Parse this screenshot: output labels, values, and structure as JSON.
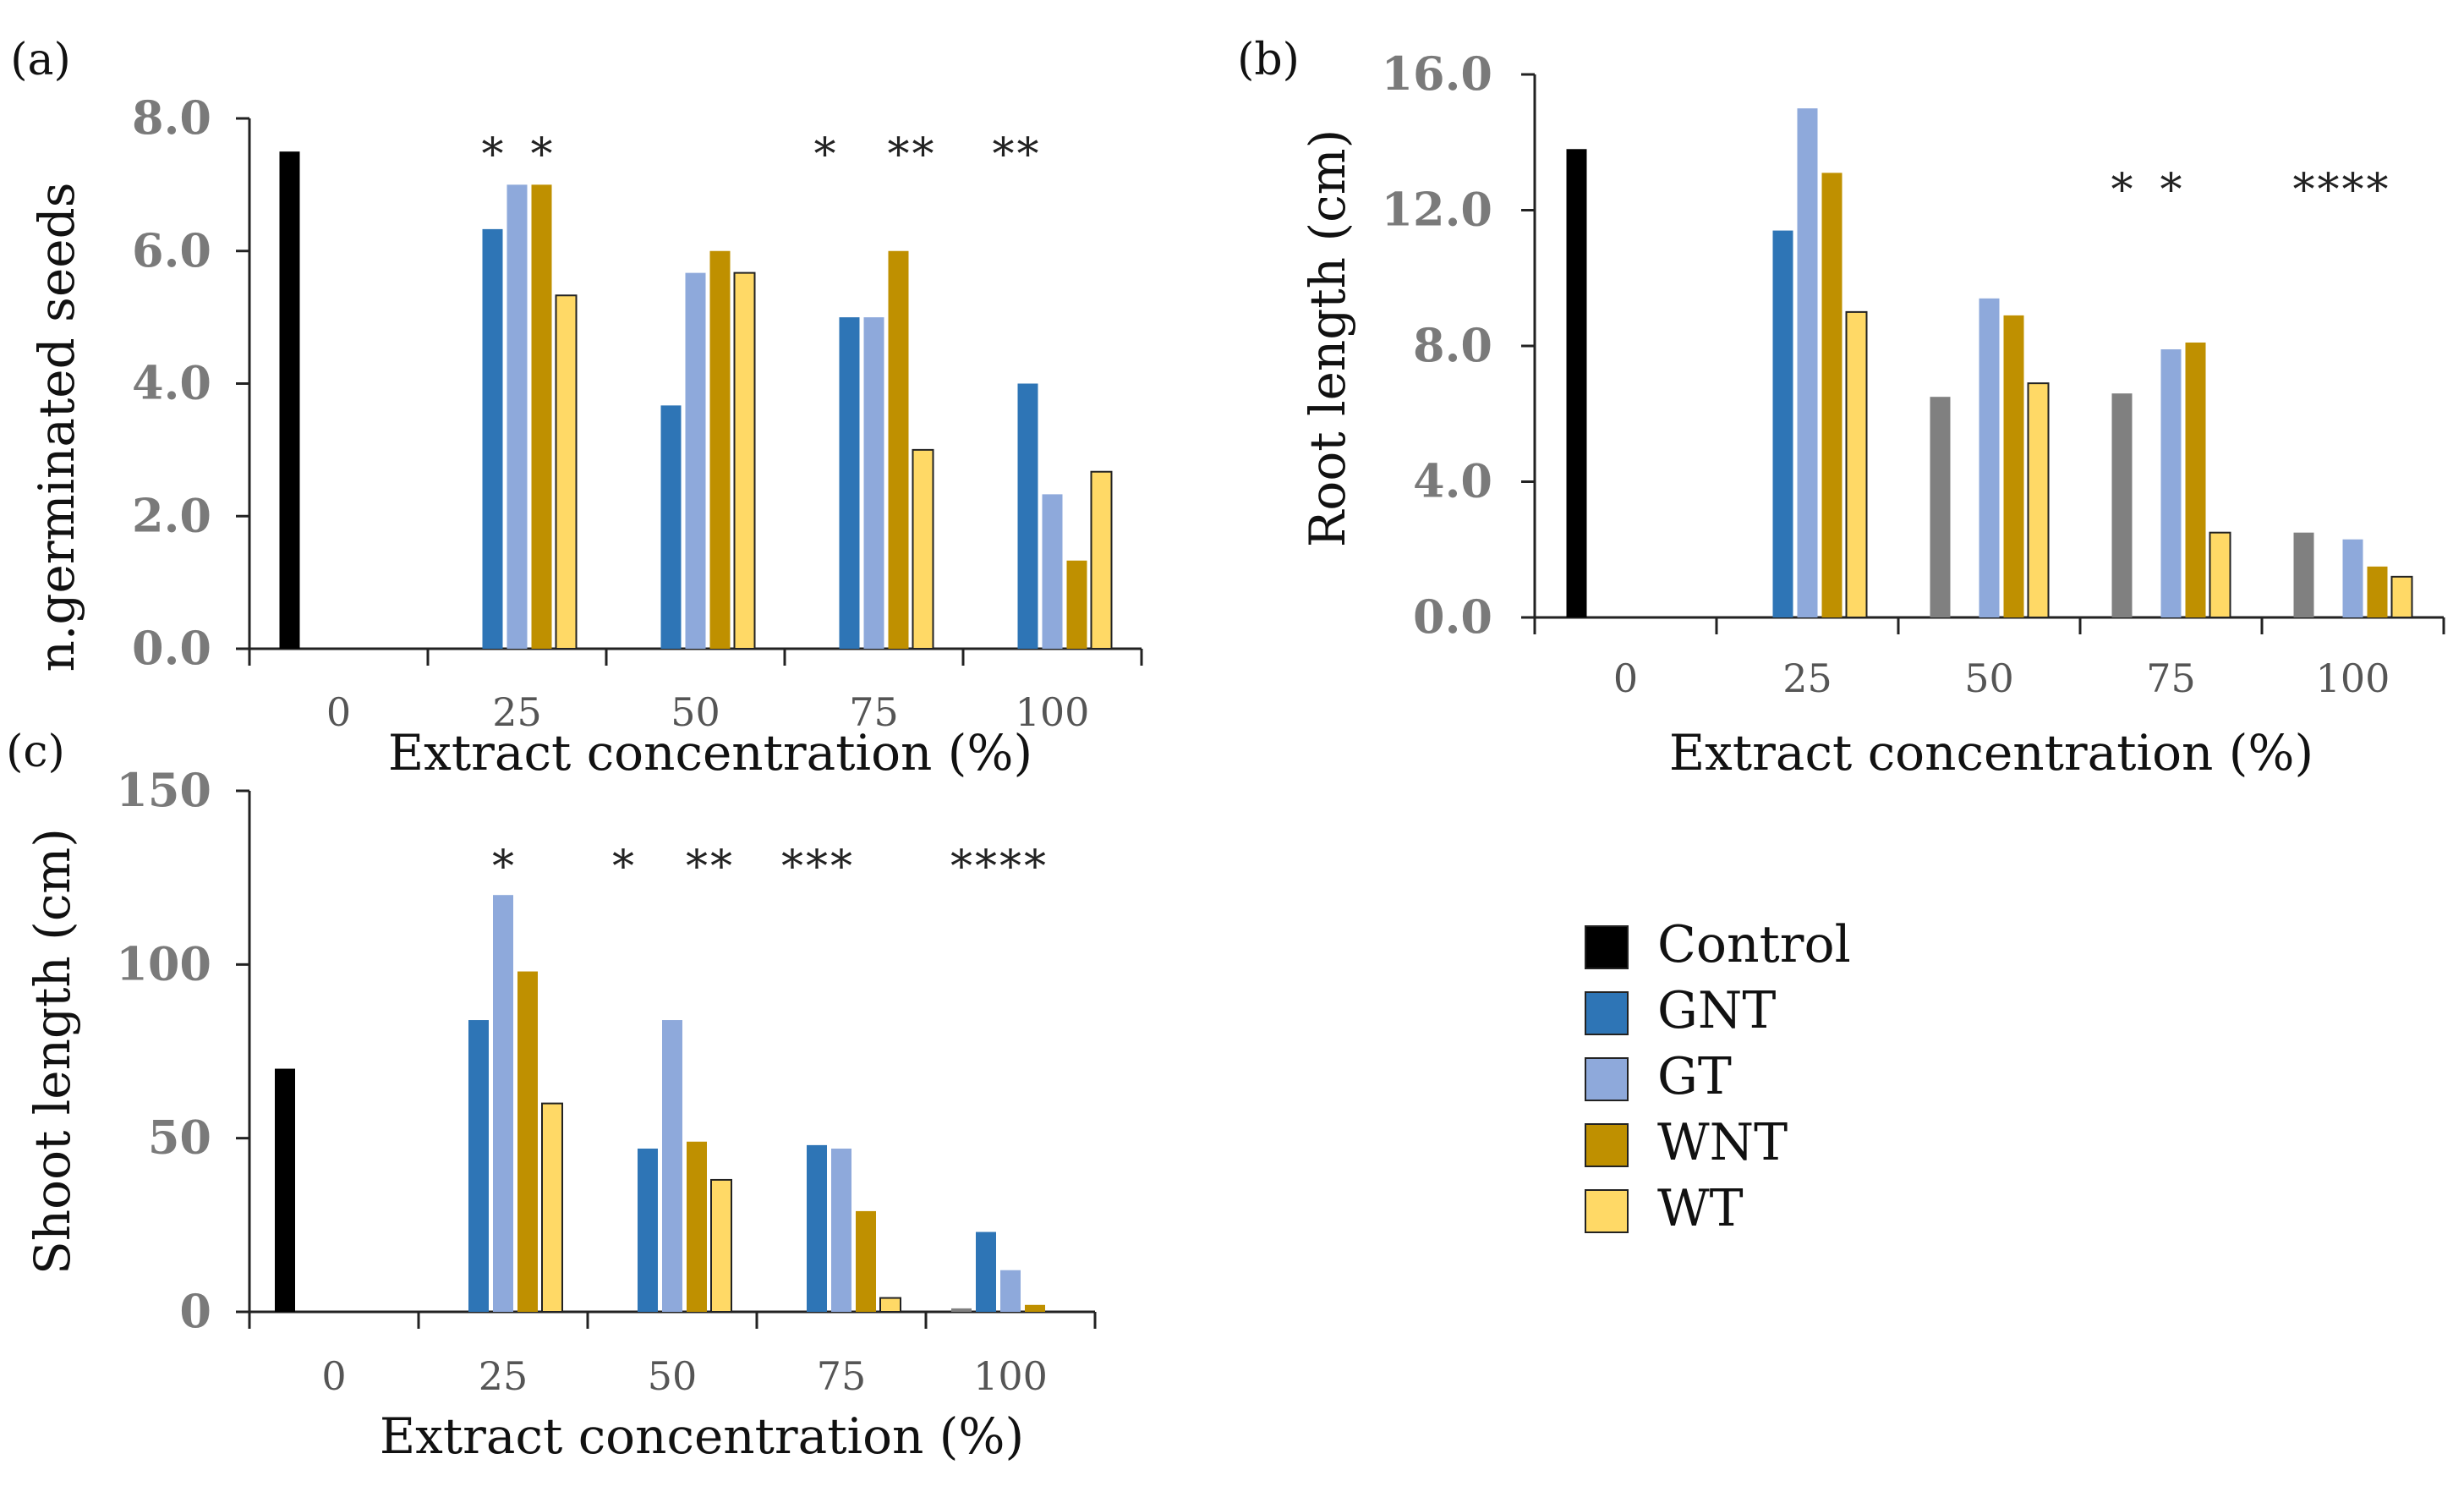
{
  "chart_data": [
    {
      "panel": "(a)",
      "type": "bar",
      "categories": [
        "0",
        "25",
        "50",
        "75",
        "100"
      ],
      "series": [
        {
          "name": "Control",
          "values": [
            7.5,
            null,
            null,
            null,
            null
          ]
        },
        {
          "name": "GNT",
          "values": [
            null,
            6.33,
            3.67,
            5.0,
            4.0
          ]
        },
        {
          "name": "GT",
          "values": [
            null,
            7.0,
            5.67,
            5.0,
            2.33
          ]
        },
        {
          "name": "WNT",
          "values": [
            null,
            7.0,
            6.0,
            6.0,
            1.33
          ]
        },
        {
          "name": "WT",
          "values": [
            null,
            5.33,
            5.67,
            3.0,
            2.67
          ]
        }
      ],
      "ylim": [
        0,
        8
      ],
      "yticks": [
        "0.0",
        "2.0",
        "4.0",
        "6.0",
        "8.0"
      ],
      "xlabel": "Extract concentration (%)",
      "ylabel": "n.germinated seeds",
      "significance": [
        {
          "category": "25",
          "series": "GNT",
          "label": "*"
        },
        {
          "category": "25",
          "series": "WNT",
          "label": "*"
        },
        {
          "category": "75",
          "series": "Control",
          "label": "*"
        },
        {
          "category": "75",
          "series": "WNT",
          "label": "*"
        },
        {
          "category": "75",
          "series": "WT",
          "label": "*"
        },
        {
          "category": "100",
          "series": "Control",
          "label": "*"
        },
        {
          "category": "100",
          "series": "GNT",
          "label": "*"
        }
      ]
    },
    {
      "panel": "(b)",
      "type": "bar",
      "categories": [
        "0",
        "25",
        "50",
        "75",
        "100"
      ],
      "series": [
        {
          "name": "Control",
          "values": [
            13.8,
            null,
            6.5,
            6.6,
            2.5
          ]
        },
        {
          "name": "GNT",
          "values": [
            null,
            11.4,
            null,
            null,
            null
          ]
        },
        {
          "name": "GT",
          "values": [
            null,
            15.0,
            9.4,
            7.9,
            2.3
          ]
        },
        {
          "name": "WNT",
          "values": [
            null,
            13.1,
            8.9,
            8.1,
            1.5
          ]
        },
        {
          "name": "WT",
          "values": [
            null,
            9.0,
            6.9,
            2.5,
            1.2
          ]
        }
      ],
      "ylim": [
        0,
        16
      ],
      "yticks": [
        "0.0",
        "4.0",
        "8.0",
        "12.0",
        "16.0"
      ],
      "xlabel": "Extract concentration (%)",
      "ylabel": "Root length (cm)",
      "significance": [
        {
          "category": "75",
          "series": "Control",
          "label": "*"
        },
        {
          "category": "75",
          "series": "GT",
          "label": "*"
        },
        {
          "category": "100",
          "series": "Control",
          "label": "*"
        },
        {
          "category": "100",
          "series": "GNT",
          "label": "*"
        },
        {
          "category": "100",
          "series": "GT",
          "label": "*"
        },
        {
          "category": "100",
          "series": "WNT",
          "label": "*"
        }
      ]
    },
    {
      "panel": "(c)",
      "type": "bar",
      "categories": [
        "0",
        "25",
        "50",
        "75",
        "100"
      ],
      "series": [
        {
          "name": "Control",
          "values": [
            70,
            null,
            null,
            null,
            1
          ]
        },
        {
          "name": "GNT",
          "values": [
            null,
            84,
            47,
            48,
            23
          ]
        },
        {
          "name": "GT",
          "values": [
            null,
            120,
            84,
            47,
            12
          ]
        },
        {
          "name": "WNT",
          "values": [
            null,
            98,
            49,
            29,
            2
          ]
        },
        {
          "name": "WT",
          "values": [
            null,
            60,
            38,
            4,
            0
          ]
        }
      ],
      "ylim": [
        0,
        150
      ],
      "yticks": [
        "0",
        "50",
        "100",
        "150"
      ],
      "xlabel": "Extract concentration (%)",
      "ylabel": "Shoot length (cm)",
      "significance": [
        {
          "category": "25",
          "series": "GT",
          "label": "*"
        },
        {
          "category": "50",
          "series": "Control",
          "label": "*"
        },
        {
          "category": "50",
          "series": "WNT",
          "label": "*"
        },
        {
          "category": "50",
          "series": "WT",
          "label": "*"
        },
        {
          "category": "75",
          "series": "Control",
          "label": "*"
        },
        {
          "category": "75",
          "series": "GNT",
          "label": "*"
        },
        {
          "category": "75",
          "series": "GT",
          "label": "*"
        },
        {
          "category": "100",
          "series": "Control",
          "label": "*"
        },
        {
          "category": "100",
          "series": "GNT",
          "label": "*"
        },
        {
          "category": "100",
          "series": "GT",
          "label": "*"
        },
        {
          "category": "100",
          "series": "WNT",
          "label": "*"
        }
      ]
    }
  ],
  "legend": {
    "items": [
      {
        "name": "Control",
        "color": "#000000"
      },
      {
        "name": "GNT",
        "color": "#2E75B6"
      },
      {
        "name": "GT",
        "color": "#8EA9DB"
      },
      {
        "name": "WNT",
        "color": "#BF9000"
      },
      {
        "name": "WT",
        "color": "#FFD966"
      }
    ]
  },
  "colors": {
    "gray_control": "#808080",
    "axis": "#222222",
    "bar_outline": "#222222"
  }
}
